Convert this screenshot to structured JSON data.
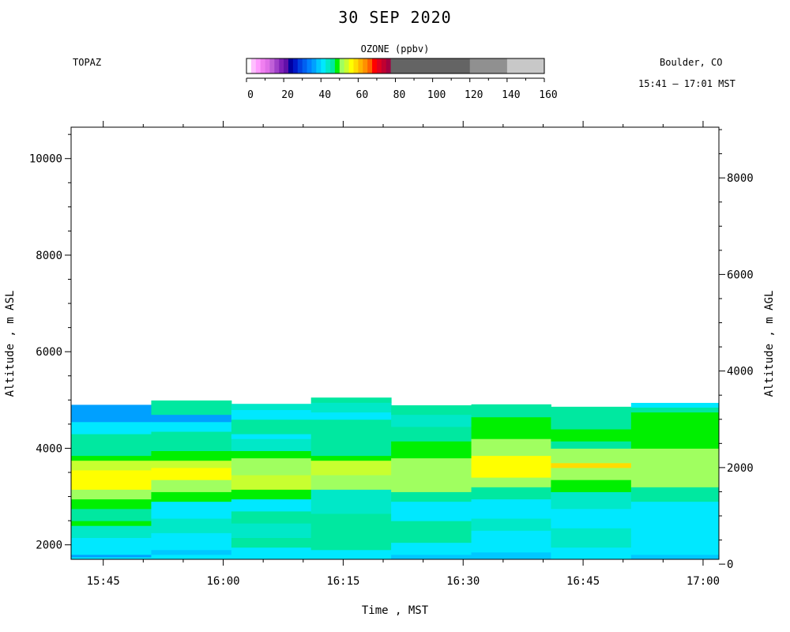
{
  "chart_data": {
    "type": "heatmap",
    "title": "30 SEP 2020",
    "station": "TOPAZ",
    "location": "Boulder, CO",
    "time_range": "15:41 – 17:01 MST",
    "colorbar": {
      "title": "OZONE (ppbv)",
      "range": [
        0,
        160
      ],
      "ticks": [
        0,
        20,
        40,
        60,
        80,
        100,
        120,
        140,
        160
      ],
      "segments": [
        {
          "from": 0,
          "to": 2.5,
          "color": "#ffffff"
        },
        {
          "from": 2.5,
          "to": 5,
          "color": "#ffc0ff"
        },
        {
          "from": 5,
          "to": 7.5,
          "color": "#ff9cff"
        },
        {
          "from": 7.5,
          "to": 10,
          "color": "#f080f0"
        },
        {
          "from": 10,
          "to": 12.5,
          "color": "#e070e8"
        },
        {
          "from": 12.5,
          "to": 15,
          "color": "#c060d8"
        },
        {
          "from": 15,
          "to": 17.5,
          "color": "#a040c8"
        },
        {
          "from": 17.5,
          "to": 20,
          "color": "#8020b8"
        },
        {
          "from": 20,
          "to": 22.5,
          "color": "#6010a8"
        },
        {
          "from": 22.5,
          "to": 25,
          "color": "#0000a0"
        },
        {
          "from": 25,
          "to": 27.5,
          "color": "#0018c8"
        },
        {
          "from": 27.5,
          "to": 30,
          "color": "#0040e0"
        },
        {
          "from": 30,
          "to": 32.5,
          "color": "#0060f0"
        },
        {
          "from": 32.5,
          "to": 35,
          "color": "#0080ff"
        },
        {
          "from": 35,
          "to": 37.5,
          "color": "#00a0ff"
        },
        {
          "from": 37.5,
          "to": 40,
          "color": "#00c8ff"
        },
        {
          "from": 40,
          "to": 42.5,
          "color": "#00e8ff"
        },
        {
          "from": 42.5,
          "to": 45,
          "color": "#00e8c8"
        },
        {
          "from": 45,
          "to": 47.5,
          "color": "#00e8a0"
        },
        {
          "from": 47.5,
          "to": 50,
          "color": "#00f000"
        },
        {
          "from": 50,
          "to": 52.5,
          "color": "#a0ff60"
        },
        {
          "from": 52.5,
          "to": 55,
          "color": "#c8ff30"
        },
        {
          "from": 55,
          "to": 57.5,
          "color": "#ffff00"
        },
        {
          "from": 57.5,
          "to": 60,
          "color": "#ffdc00"
        },
        {
          "from": 60,
          "to": 62.5,
          "color": "#ffb400"
        },
        {
          "from": 62.5,
          "to": 65,
          "color": "#ff9000"
        },
        {
          "from": 65,
          "to": 67.5,
          "color": "#ff6000"
        },
        {
          "from": 67.5,
          "to": 70,
          "color": "#ff0000"
        },
        {
          "from": 70,
          "to": 72.5,
          "color": "#e00020"
        },
        {
          "from": 72.5,
          "to": 75,
          "color": "#c00030"
        },
        {
          "from": 75,
          "to": 77.5,
          "color": "#a00040"
        },
        {
          "from": 77.5,
          "to": 120,
          "color": "#646464"
        },
        {
          "from": 120,
          "to": 140,
          "color": "#909090"
        },
        {
          "from": 140,
          "to": 160,
          "color": "#c8c8c8"
        }
      ]
    },
    "x_axis": {
      "label": "Time , MST",
      "range": [
        15.683,
        17.033
      ],
      "ticks": [
        {
          "value": 15.75,
          "label": "15:45"
        },
        {
          "value": 16.0,
          "label": "16:00"
        },
        {
          "value": 16.25,
          "label": "16:15"
        },
        {
          "value": 16.5,
          "label": "16:30"
        },
        {
          "value": 16.75,
          "label": "16:45"
        },
        {
          "value": 17.0,
          "label": "17:00"
        }
      ]
    },
    "y_axis_left": {
      "label": "Altitude , m ASL",
      "range": [
        1700,
        10650
      ],
      "ticks": [
        2000,
        4000,
        6000,
        8000,
        10000
      ]
    },
    "y_axis_right": {
      "label": "Altitude , m AGL",
      "offset": 1600,
      "ticks": [
        0,
        2000,
        4000,
        6000,
        8000
      ]
    },
    "profiles": [
      {
        "t0": 15.683,
        "t1": 15.85,
        "top": 4900,
        "layers": [
          {
            "z0": 1700,
            "z1": 1750,
            "v": 41
          },
          {
            "z0": 1750,
            "z1": 1800,
            "v": 37
          },
          {
            "z0": 1800,
            "z1": 2150,
            "v": 41
          },
          {
            "z0": 2150,
            "z1": 2400,
            "v": 44
          },
          {
            "z0": 2400,
            "z1": 2500,
            "v": 49
          },
          {
            "z0": 2500,
            "z1": 2750,
            "v": 46
          },
          {
            "z0": 2750,
            "z1": 2950,
            "v": 49
          },
          {
            "z0": 2950,
            "z1": 3150,
            "v": 51
          },
          {
            "z0": 3150,
            "z1": 3550,
            "v": 55
          },
          {
            "z0": 3550,
            "z1": 3750,
            "v": 53
          },
          {
            "z0": 3750,
            "z1": 3850,
            "v": 49
          },
          {
            "z0": 3850,
            "z1": 4300,
            "v": 45
          },
          {
            "z0": 4300,
            "z1": 4550,
            "v": 41
          },
          {
            "z0": 4550,
            "z1": 4900,
            "v": 37
          }
        ]
      },
      {
        "t0": 15.85,
        "t1": 16.017,
        "top": 4990,
        "layers": [
          {
            "z0": 1700,
            "z1": 1800,
            "v": 41
          },
          {
            "z0": 1800,
            "z1": 1900,
            "v": 38
          },
          {
            "z0": 1900,
            "z1": 2250,
            "v": 41
          },
          {
            "z0": 2250,
            "z1": 2550,
            "v": 44
          },
          {
            "z0": 2550,
            "z1": 2900,
            "v": 41
          },
          {
            "z0": 2900,
            "z1": 3100,
            "v": 48
          },
          {
            "z0": 3100,
            "z1": 3350,
            "v": 52
          },
          {
            "z0": 3350,
            "z1": 3600,
            "v": 56
          },
          {
            "z0": 3600,
            "z1": 3750,
            "v": 53
          },
          {
            "z0": 3750,
            "z1": 3950,
            "v": 49
          },
          {
            "z0": 3950,
            "z1": 4350,
            "v": 45
          },
          {
            "z0": 4350,
            "z1": 4550,
            "v": 41
          },
          {
            "z0": 4550,
            "z1": 4700,
            "v": 37
          },
          {
            "z0": 4700,
            "z1": 4990,
            "v": 45
          }
        ]
      },
      {
        "t0": 16.017,
        "t1": 16.183,
        "top": 4920,
        "layers": [
          {
            "z0": 1700,
            "z1": 1950,
            "v": 41
          },
          {
            "z0": 1950,
            "z1": 2150,
            "v": 46
          },
          {
            "z0": 2150,
            "z1": 2450,
            "v": 44
          },
          {
            "z0": 2450,
            "z1": 2700,
            "v": 46
          },
          {
            "z0": 2700,
            "z1": 2950,
            "v": 41
          },
          {
            "z0": 2950,
            "z1": 3150,
            "v": 49
          },
          {
            "z0": 3150,
            "z1": 3450,
            "v": 53
          },
          {
            "z0": 3450,
            "z1": 3800,
            "v": 51
          },
          {
            "z0": 3800,
            "z1": 3950,
            "v": 49
          },
          {
            "z0": 3950,
            "z1": 4200,
            "v": 44
          },
          {
            "z0": 4200,
            "z1": 4300,
            "v": 41
          },
          {
            "z0": 4300,
            "z1": 4600,
            "v": 45
          },
          {
            "z0": 4600,
            "z1": 4800,
            "v": 41
          },
          {
            "z0": 4800,
            "z1": 4920,
            "v": 44
          }
        ]
      },
      {
        "t0": 16.183,
        "t1": 16.35,
        "top": 5050,
        "layers": [
          {
            "z0": 1700,
            "z1": 1900,
            "v": 41
          },
          {
            "z0": 1900,
            "z1": 2100,
            "v": 45
          },
          {
            "z0": 2100,
            "z1": 2650,
            "v": 46
          },
          {
            "z0": 2650,
            "z1": 3150,
            "v": 44
          },
          {
            "z0": 3150,
            "z1": 3450,
            "v": 51
          },
          {
            "z0": 3450,
            "z1": 3750,
            "v": 53
          },
          {
            "z0": 3750,
            "z1": 3850,
            "v": 49
          },
          {
            "z0": 3850,
            "z1": 4150,
            "v": 45
          },
          {
            "z0": 4150,
            "z1": 4600,
            "v": 46
          },
          {
            "z0": 4600,
            "z1": 4750,
            "v": 41
          },
          {
            "z0": 4750,
            "z1": 4950,
            "v": 44
          },
          {
            "z0": 4950,
            "z1": 5050,
            "v": 46
          }
        ]
      },
      {
        "t0": 16.35,
        "t1": 16.517,
        "top": 4890,
        "layers": [
          {
            "z0": 1700,
            "z1": 1800,
            "v": 38
          },
          {
            "z0": 1800,
            "z1": 2050,
            "v": 41
          },
          {
            "z0": 2050,
            "z1": 2500,
            "v": 45
          },
          {
            "z0": 2500,
            "z1": 2900,
            "v": 41
          },
          {
            "z0": 2900,
            "z1": 3100,
            "v": 46
          },
          {
            "z0": 3100,
            "z1": 3400,
            "v": 51
          },
          {
            "z0": 3400,
            "z1": 3800,
            "v": 52
          },
          {
            "z0": 3800,
            "z1": 4150,
            "v": 49
          },
          {
            "z0": 4150,
            "z1": 4450,
            "v": 45
          },
          {
            "z0": 4450,
            "z1": 4700,
            "v": 44
          },
          {
            "z0": 4700,
            "z1": 4890,
            "v": 46
          }
        ]
      },
      {
        "t0": 16.517,
        "t1": 16.683,
        "top": 4910,
        "layers": [
          {
            "z0": 1700,
            "z1": 1850,
            "v": 38
          },
          {
            "z0": 1850,
            "z1": 2300,
            "v": 41
          },
          {
            "z0": 2300,
            "z1": 2550,
            "v": 44
          },
          {
            "z0": 2550,
            "z1": 2950,
            "v": 41
          },
          {
            "z0": 2950,
            "z1": 3200,
            "v": 45
          },
          {
            "z0": 3200,
            "z1": 3400,
            "v": 51
          },
          {
            "z0": 3400,
            "z1": 3850,
            "v": 56
          },
          {
            "z0": 3850,
            "z1": 4200,
            "v": 52
          },
          {
            "z0": 4200,
            "z1": 4650,
            "v": 49
          },
          {
            "z0": 4650,
            "z1": 4910,
            "v": 45
          }
        ]
      },
      {
        "t0": 16.683,
        "t1": 16.85,
        "top": 4860,
        "layers": [
          {
            "z0": 1700,
            "z1": 1950,
            "v": 41
          },
          {
            "z0": 1950,
            "z1": 2350,
            "v": 44
          },
          {
            "z0": 2350,
            "z1": 2750,
            "v": 41
          },
          {
            "z0": 2750,
            "z1": 3100,
            "v": 44
          },
          {
            "z0": 3100,
            "z1": 3350,
            "v": 49
          },
          {
            "z0": 3350,
            "z1": 3600,
            "v": 52
          },
          {
            "z0": 3600,
            "z1": 3700,
            "v": 59
          },
          {
            "z0": 3700,
            "z1": 4000,
            "v": 52
          },
          {
            "z0": 4000,
            "z1": 4150,
            "v": 45
          },
          {
            "z0": 4150,
            "z1": 4400,
            "v": 49
          },
          {
            "z0": 4400,
            "z1": 4860,
            "v": 45
          }
        ]
      },
      {
        "t0": 16.85,
        "t1": 17.033,
        "top": 4940,
        "layers": [
          {
            "z0": 1700,
            "z1": 1800,
            "v": 38
          },
          {
            "z0": 1800,
            "z1": 2250,
            "v": 41
          },
          {
            "z0": 2250,
            "z1": 2900,
            "v": 41
          },
          {
            "z0": 2900,
            "z1": 3200,
            "v": 45
          },
          {
            "z0": 3200,
            "z1": 3600,
            "v": 52
          },
          {
            "z0": 3600,
            "z1": 4000,
            "v": 51
          },
          {
            "z0": 4000,
            "z1": 4350,
            "v": 49
          },
          {
            "z0": 4350,
            "z1": 4750,
            "v": 49
          },
          {
            "z0": 4750,
            "z1": 4850,
            "v": 45
          },
          {
            "z0": 4850,
            "z1": 4940,
            "v": 41
          }
        ]
      }
    ]
  }
}
